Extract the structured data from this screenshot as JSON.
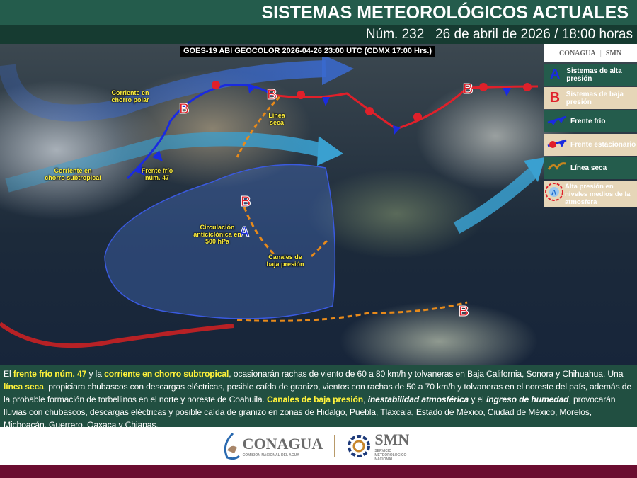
{
  "header": {
    "title": "SISTEMAS METEOROLÓGICOS ACTUALES",
    "subtitle": "Núm. 232   26 de abril de 2026 / 18:00 horas"
  },
  "map": {
    "image_caption": "GOES-19 ABI GEOCOLOR 2026-04-26 23:00 UTC (CDMX  17:00 Hrs.)",
    "labels": {
      "polar_jet": "Corriente en chorro polar",
      "subtropical_jet": "Corriente en chorro subtropical",
      "cold_front": "Frente frío núm. 47",
      "dry_line": "Línea seca",
      "anticyclone": "Circulación anticiclónica en 500 hPa",
      "low_troughs": "Canales de baja presión"
    },
    "symbols": {
      "high": "A",
      "low": "B"
    },
    "colors": {
      "high": "#1a2be0",
      "low": "#e0202a",
      "cold_front": "#1a2be0",
      "dry_line": "#e88a1a",
      "jet": "#3a8ad0"
    }
  },
  "legend": {
    "logos": [
      "CONAGUA",
      "SMN"
    ],
    "items": [
      {
        "symbol": "A",
        "label": "Sistemas de alta presión"
      },
      {
        "symbol": "B",
        "label": "Sistemas de baja presión"
      },
      {
        "icon": "cold-front-icon",
        "label": "Frente frío"
      },
      {
        "icon": "stationary-front-icon",
        "label": "Frente estacionario"
      },
      {
        "icon": "dry-line-icon",
        "label": "Línea seca"
      },
      {
        "symbol": "A",
        "label": "Alta presión en niveles medios de la atmosfera"
      }
    ]
  },
  "bulletin": {
    "p1": "El ",
    "h1": "frente frío núm. 47",
    "p2": " y la ",
    "h2": "corriente en chorro subtropical",
    "p3": ", ocasionarán rachas de viento de 60 a 80 km/h y tolvaneras en Baja California, Sonora y Chihuahua. Una ",
    "h3": "línea seca",
    "p4": ", propiciara chubascos con descargas eléctricas, posible caída de granizo, vientos con rachas de 50 a 70 km/h y tolvaneras en el noreste del país, además de la probable formación de torbellinos en el norte y noreste de Coahuila. ",
    "h4": "Canales de baja presión",
    "p5": ", ",
    "i1": "inestabilidad atmosférica",
    "p6": " y el ",
    "i2": "ingreso de humedad",
    "p7": ", provocarán lluvias con chubascos, descargas eléctricas y posible caída de granizo en zonas de Hidalgo, Puebla, Tlaxcala, Estado de México, Ciudad de México, Morelos, Michoacán, Guerrero, Oaxaca y Chiapas."
  },
  "footer": {
    "conagua": "CONAGUA",
    "conagua_sub": "COMISIÓN NACIONAL DEL AGUA",
    "smn": "SMN",
    "smn_sub": "SERVICIO METEOROLÓGICO NACIONAL"
  }
}
